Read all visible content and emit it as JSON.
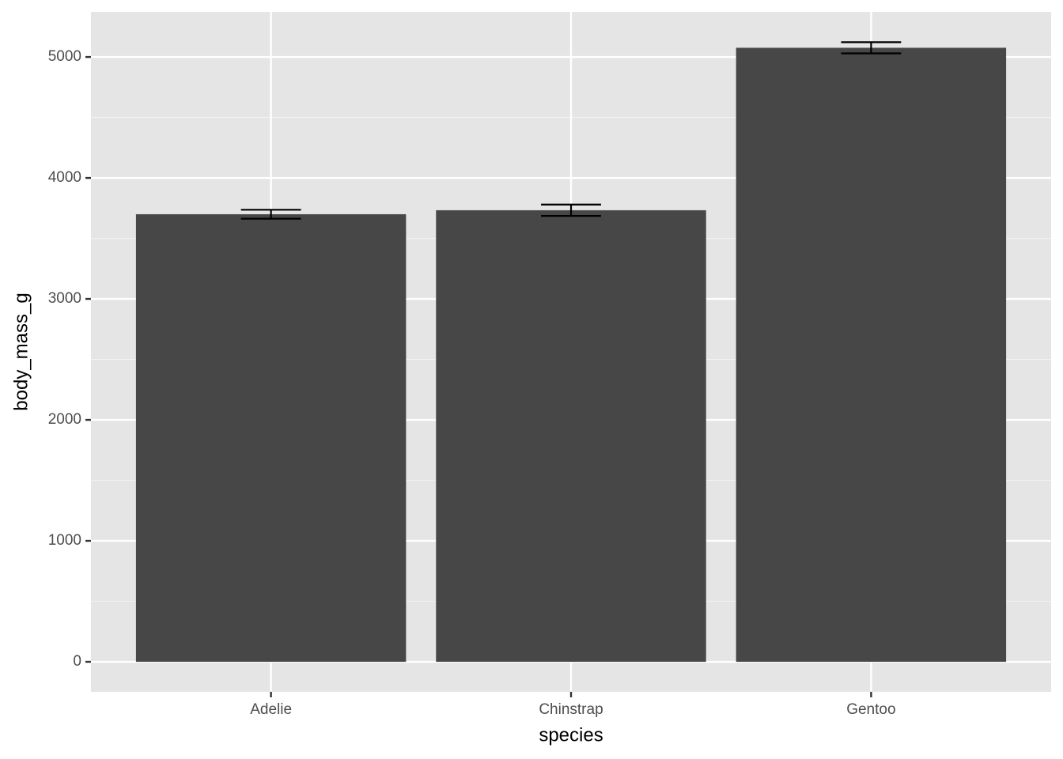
{
  "chart_data": {
    "type": "bar",
    "x_label": "species",
    "y_label": "body_mass_g",
    "categories": [
      "Adelie",
      "Chinstrap",
      "Gentoo"
    ],
    "values": [
      3700,
      3733,
      5076
    ],
    "errors": [
      37,
      47,
      46
    ],
    "color": "#474747",
    "error_color": "#000000",
    "ylim": [
      -248,
      5373
    ],
    "yticks": [
      0,
      1000,
      2000,
      3000,
      4000,
      5000
    ],
    "y_minor_ticks": [
      500,
      1500,
      2500,
      3500,
      4500
    ],
    "grid": true
  }
}
